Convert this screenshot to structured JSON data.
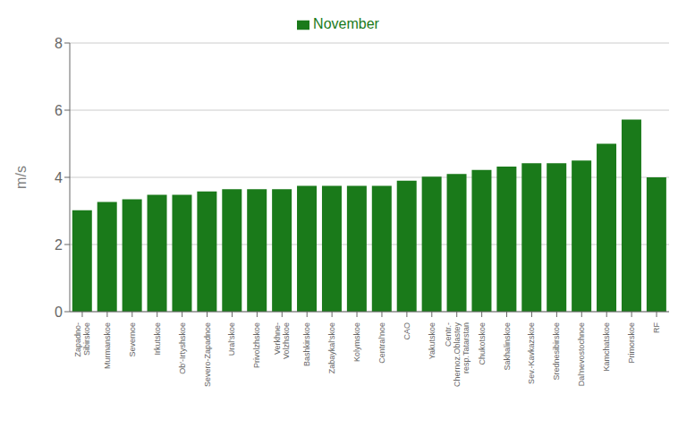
{
  "chart_data": {
    "type": "bar",
    "categories": [
      "Zapadno-\nSibirskoe",
      "Murmanskoe",
      "Severnoe",
      "Irkutskoe",
      "Ob'-Irtyshskoe",
      "Severo-Zapadnoe",
      "Ural'skoe",
      "Privolzhskoe",
      "Verkhnе-\nVolzhskoe",
      "Bashkirskoe",
      "Zabaykal'skoe",
      "Kolymskoe",
      "Central'noe",
      "CAO",
      "Yakutskoe",
      "Centr.-\nChernoz.Oblastey\nresp.Tatarstan",
      "Chukotskoe",
      "Sakhalinskoe",
      "Sev.-Kavkazskoe",
      "Srednesibirskoe",
      "Dal'nevostochnoe",
      "Kamchatskoe",
      "Primorskoe",
      "RF"
    ],
    "series": [
      {
        "name": "November",
        "color": "#1a7a1a",
        "values": [
          3.02,
          3.27,
          3.35,
          3.48,
          3.48,
          3.58,
          3.65,
          3.65,
          3.65,
          3.75,
          3.75,
          3.75,
          3.75,
          3.9,
          4.02,
          4.1,
          4.22,
          4.32,
          4.42,
          4.42,
          4.5,
          5.0,
          5.72,
          4.0
        ]
      }
    ],
    "ylabel": "m/s",
    "ylim": [
      0,
      8
    ],
    "yticks": [
      0,
      2,
      4,
      6,
      8
    ],
    "grid": true,
    "legend": "top"
  }
}
